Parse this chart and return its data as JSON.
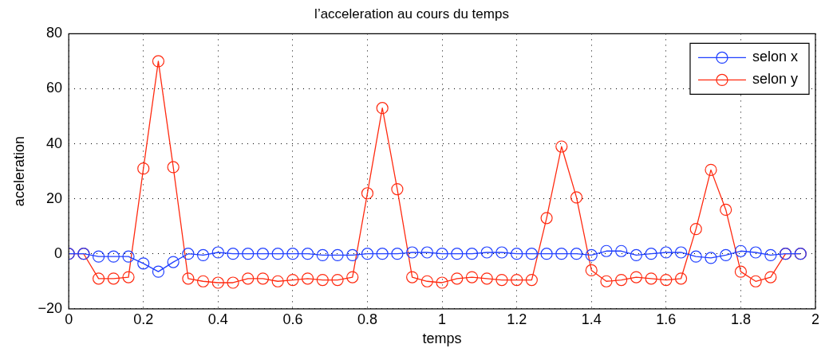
{
  "chart_data": {
    "type": "line",
    "title": "l’acceleration au cours du temps",
    "xlabel": "temps",
    "ylabel": "aceleration",
    "x": [
      0,
      0.04,
      0.08,
      0.12,
      0.16,
      0.2,
      0.24,
      0.28,
      0.32,
      0.36,
      0.4,
      0.44,
      0.48,
      0.52,
      0.56,
      0.6,
      0.64,
      0.68,
      0.72,
      0.76,
      0.8,
      0.84,
      0.88,
      0.92,
      0.96,
      1,
      1.04,
      1.08,
      1.12,
      1.16,
      1.2,
      1.24,
      1.28,
      1.32,
      1.36,
      1.4,
      1.44,
      1.48,
      1.52,
      1.56,
      1.6,
      1.64,
      1.68,
      1.72,
      1.76,
      1.8,
      1.84,
      1.88,
      1.92,
      1.96
    ],
    "series": [
      {
        "name": "selon x",
        "color": "#1f3fff",
        "values": [
          0,
          0,
          -1,
          -1,
          -1,
          -3.5,
          -6.5,
          -3,
          0,
          -0.5,
          0.5,
          0,
          0,
          0,
          0,
          0,
          0,
          -0.5,
          -0.5,
          -0.5,
          0,
          0,
          0,
          0.5,
          0.5,
          0,
          0,
          0,
          0.5,
          0.5,
          0,
          0,
          0,
          0,
          0,
          -0.5,
          1,
          1,
          -0.5,
          0,
          0.5,
          0.5,
          -1,
          -1.5,
          -0.5,
          1,
          0.5,
          -0.5,
          0,
          0
        ]
      },
      {
        "name": "selon y",
        "color": "#ff2a10",
        "values": [
          0,
          0,
          -9,
          -9,
          -8.5,
          31,
          70,
          31.5,
          -9,
          -10,
          -10.5,
          -10.5,
          -9,
          -9,
          -10,
          -9.5,
          -9,
          -9.5,
          -9.5,
          -8.5,
          22,
          53,
          23.5,
          -8.5,
          -10,
          -10.5,
          -9,
          -8.5,
          -9,
          -9.5,
          -9.5,
          -9.5,
          13,
          39,
          20.5,
          -6,
          -10,
          -9.5,
          -8.5,
          -9,
          -9.5,
          -9,
          9,
          30.5,
          16,
          -6.5,
          -10,
          -8.5,
          0,
          0
        ]
      }
    ],
    "xlim": [
      0,
      2
    ],
    "xticks": [
      0,
      0.2,
      0.4,
      0.6,
      0.8,
      1,
      1.2,
      1.4,
      1.6,
      1.8,
      2
    ],
    "ylim": [
      -20,
      80
    ],
    "yticks": [
      {
        "value": -20,
        "label": "−20"
      },
      0,
      20,
      40,
      60,
      80
    ],
    "grid": true,
    "legend": "top right",
    "marker": "circle",
    "line_style": "solid"
  }
}
